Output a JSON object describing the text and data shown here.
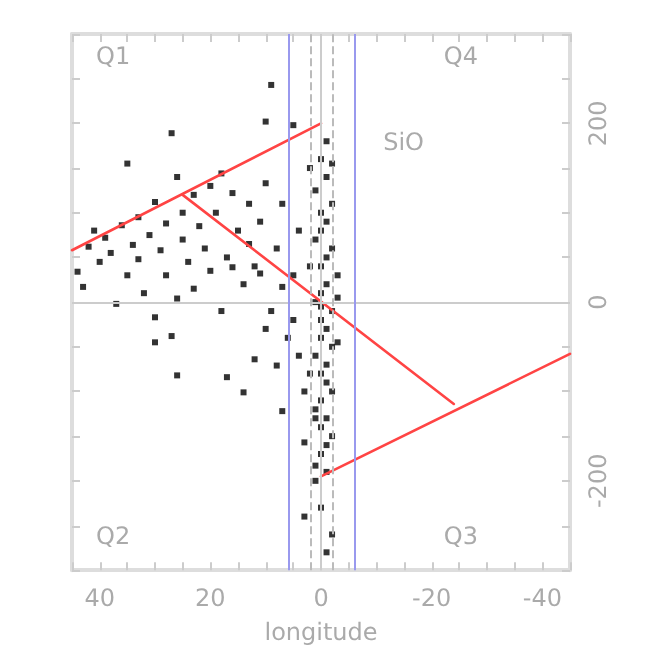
{
  "chart_data": {
    "type": "scatter",
    "xlabel": "longitude",
    "annotations": [
      "Q1",
      "Q4",
      "SiO",
      "Q2",
      "Q3"
    ],
    "xlim": [
      45,
      -45
    ],
    "ylim": [
      -300,
      300
    ],
    "xticks": [
      {
        "value": 45,
        "label": null
      },
      40,
      {
        "value": 35,
        "label": null
      },
      {
        "value": 30,
        "label": null
      },
      {
        "value": 25,
        "label": null
      },
      20,
      {
        "value": 15,
        "label": null
      },
      {
        "value": 10,
        "label": null
      },
      {
        "value": 5,
        "label": null
      },
      0,
      {
        "value": -5,
        "label": null
      },
      {
        "value": -10,
        "label": null
      },
      {
        "value": -15,
        "label": null
      },
      -20,
      {
        "value": -25,
        "label": null
      },
      {
        "value": -30,
        "label": null
      },
      {
        "value": -35,
        "label": null
      },
      -40,
      {
        "value": -45,
        "label": null
      }
    ],
    "yticks": [
      {
        "value": -300,
        "label": null
      },
      {
        "value": -250,
        "label": null
      },
      -200,
      {
        "value": -150,
        "label": null
      },
      {
        "value": -100,
        "label": null
      },
      {
        "value": -50,
        "label": null
      },
      0,
      {
        "value": 50,
        "label": null
      },
      {
        "value": 100,
        "label": null
      },
      {
        "value": 150,
        "label": null
      },
      200,
      {
        "value": 250,
        "label": null
      },
      {
        "value": 300,
        "label": null
      }
    ],
    "grid": false,
    "ref_lines": [
      {
        "axis": "x",
        "value": 0,
        "color": "#cccccc",
        "line_style": "solid"
      },
      {
        "axis": "y",
        "value": 0,
        "color": "#cccccc",
        "line_style": "solid"
      },
      {
        "axis": "x",
        "value": 2,
        "color": "#bbbbbb",
        "line_style": "dashed"
      },
      {
        "axis": "x",
        "value": -2,
        "color": "#bbbbbb",
        "line_style": "dashed"
      },
      {
        "axis": "x",
        "value": 6,
        "color": "#9999ee",
        "line_style": "solid"
      },
      {
        "axis": "x",
        "value": -6,
        "color": "#9999ee",
        "line_style": "solid"
      }
    ],
    "series": [
      {
        "marker": "square",
        "color": "#000000",
        "x": [
          44,
          43,
          42,
          41,
          40,
          39,
          38,
          37,
          36,
          35,
          35,
          34,
          33,
          33,
          32,
          31,
          30,
          30,
          30,
          29,
          28,
          28,
          27,
          27,
          26,
          26,
          26,
          25,
          25,
          24,
          23,
          23,
          22,
          21,
          20,
          20,
          19,
          18,
          18,
          17,
          17,
          16,
          16,
          15,
          14,
          14,
          13,
          13,
          12,
          12,
          11,
          11,
          10,
          10,
          10,
          9,
          9,
          8,
          8,
          7,
          7,
          7,
          6,
          5,
          5,
          5,
          4,
          4,
          3,
          3,
          3,
          2,
          2,
          2,
          1,
          1,
          0,
          -1,
          1,
          -2,
          0,
          -1,
          0,
          1,
          -2,
          -1,
          0,
          -3,
          -1,
          0,
          1,
          -2,
          0,
          -1,
          0,
          -2,
          1,
          -1,
          0,
          -1,
          -2,
          0,
          1,
          -1,
          0,
          -2,
          -1,
          0,
          -1,
          1,
          0,
          -2,
          -1,
          -1,
          -2,
          0,
          -3,
          -3
        ],
        "values": [
          34,
          17,
          62,
          80,
          45,
          72,
          55,
          -2,
          86,
          155,
          30,
          64,
          95,
          48,
          10,
          75,
          112,
          -17,
          -45,
          58,
          88,
          30,
          189,
          -38,
          140,
          4,
          -82,
          70,
          100,
          45,
          120,
          15,
          85,
          60,
          130,
          35,
          100,
          144,
          -10,
          -84,
          50,
          122,
          39,
          80,
          20,
          -101,
          110,
          65,
          -64,
          40,
          32,
          90,
          202,
          133,
          -30,
          243,
          -10,
          -71,
          60,
          17,
          -122,
          110,
          -40,
          198,
          30,
          -20,
          80,
          -60,
          -157,
          -240,
          -100,
          150,
          40,
          -80,
          -183,
          -130,
          160,
          140,
          125,
          110,
          100,
          90,
          80,
          70,
          60,
          50,
          40,
          30,
          20,
          10,
          0,
          -10,
          -20,
          -30,
          -40,
          -50,
          -60,
          -70,
          -80,
          -90,
          -100,
          -110,
          -120,
          -130,
          -140,
          -150,
          -160,
          -170,
          -190,
          -200,
          -230,
          -260,
          -280,
          180,
          155,
          -5,
          5,
          -45
        ]
      },
      {
        "type": "line",
        "marker": "none",
        "color": "#ff4444",
        "x": [
          45,
          0
        ],
        "values": [
          58,
          200
        ]
      },
      {
        "type": "line",
        "marker": "none",
        "color": "#ff4444",
        "x": [
          25,
          -24
        ],
        "values": [
          120,
          -114
        ]
      },
      {
        "type": "line",
        "marker": "none",
        "color": "#ff4444",
        "x": [
          0,
          -45
        ],
        "values": [
          -195,
          -58
        ]
      }
    ]
  }
}
